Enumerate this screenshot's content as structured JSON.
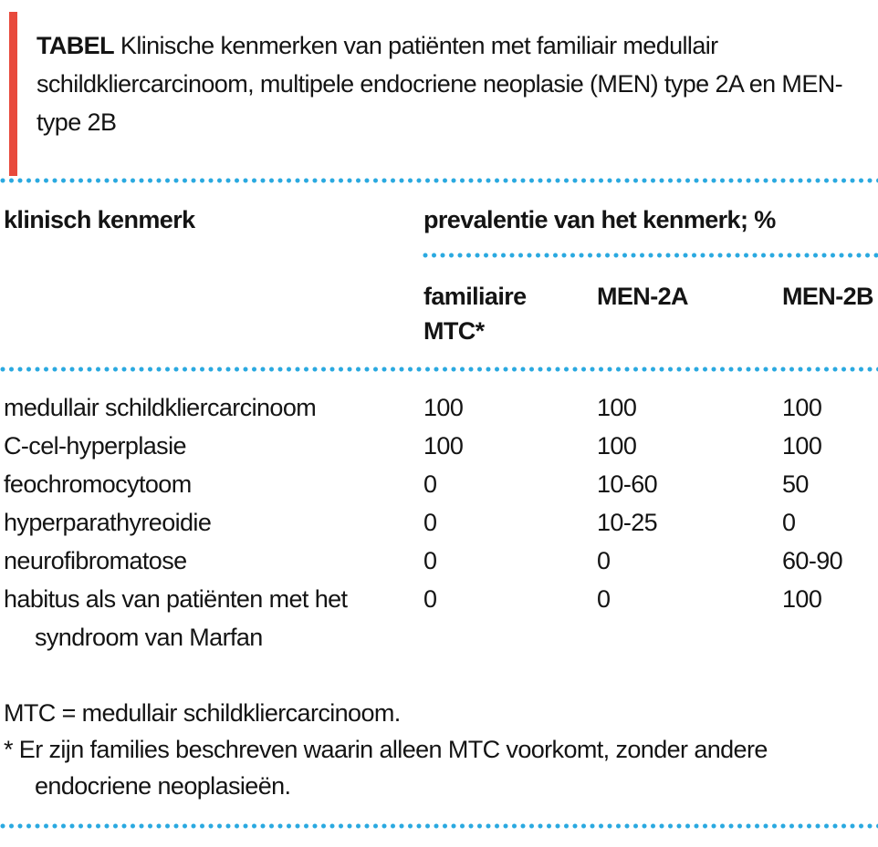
{
  "colors": {
    "accent_red": "#e84a3c",
    "dot_blue": "#2aa9e0",
    "text": "#141414"
  },
  "title": {
    "label": "TABEL",
    "text": "Klinische kenmerken van patiënten met familiair medullair schildkliercarcinoom, multipele endocriene neoplasie (MEN) type 2A en MEN-type 2B"
  },
  "table": {
    "col1_header": "klinisch kenmerk",
    "group_header": "prevalentie van het kenmerk; %",
    "columns": [
      "familiaire MTC*",
      "MEN-2A",
      "MEN-2B"
    ],
    "rows": [
      {
        "label": "medullair schildkliercarcinoom",
        "values": [
          "100",
          "100",
          "100"
        ]
      },
      {
        "label": "C-cel-hyperplasie",
        "values": [
          "100",
          "100",
          "100"
        ]
      },
      {
        "label": "feochromocytoom",
        "values": [
          "0",
          "10-60",
          "50"
        ]
      },
      {
        "label": "hyperparathyreoidie",
        "values": [
          "0",
          "10-25",
          "0"
        ]
      },
      {
        "label": "neurofibromatose",
        "values": [
          "0",
          "0",
          "60-90"
        ]
      },
      {
        "label": "habitus als van patiënten met het syndroom van Marfan",
        "values": [
          "0",
          "0",
          "100"
        ]
      }
    ]
  },
  "footnotes": [
    "MTC = medullair schildkliercarcinoom.",
    "* Er zijn families beschreven waarin alleen MTC voorkomt, zonder andere endocriene neoplasieën."
  ]
}
